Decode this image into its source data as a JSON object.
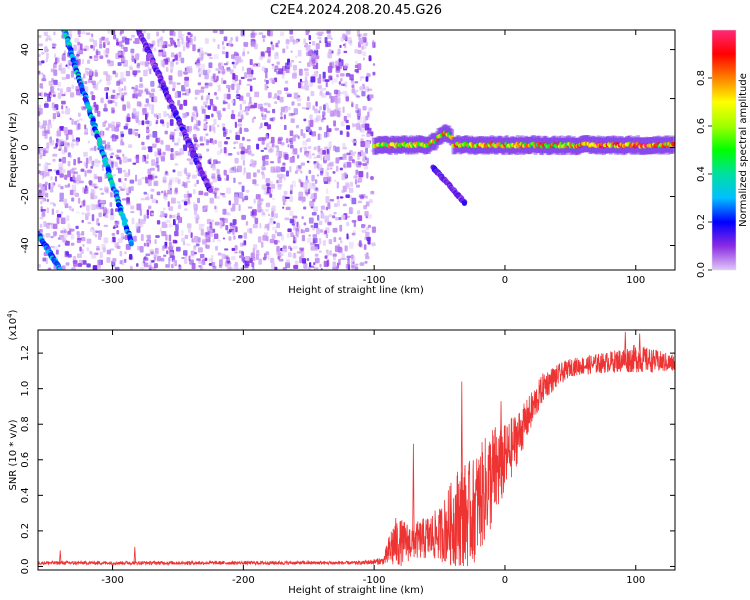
{
  "title": "C2E4.2024.208.20.45.G26",
  "chart_data": [
    {
      "type": "heatmap",
      "title": "C2E4.2024.208.20.45.G26",
      "xlabel": "Height of straight line (km)",
      "ylabel": "Frequency (Hz)",
      "xlim": [
        -357,
        130
      ],
      "ylim": [
        -50,
        48
      ],
      "x_ticks": [
        -300,
        -200,
        -100,
        0,
        100
      ],
      "y_ticks": [
        -40,
        -20,
        0,
        20,
        40
      ],
      "colorbar": {
        "label": "Normalized spectral amplitude",
        "range": [
          0,
          1
        ],
        "ticks": [
          0.0,
          0.2,
          0.4,
          0.6,
          0.8
        ],
        "colormap": [
          "#e0c8f8",
          "#8a2be2",
          "#0000ff",
          "#00bfff",
          "#00e0a0",
          "#00ff00",
          "#a0ff00",
          "#ffff00",
          "#ff8000",
          "#ff0000",
          "#ff2a7a"
        ]
      },
      "noise_region_x": [
        -357,
        -100
      ],
      "features": [
        {
          "name": "diagonal trace A",
          "x": [
            -337,
            -285
          ],
          "y": [
            48,
            -40
          ],
          "level": 0.35
        },
        {
          "name": "diagonal trace B",
          "x": [
            -280,
            -225
          ],
          "y": [
            48,
            -18
          ],
          "level": 0.15
        },
        {
          "name": "short trace C",
          "x": [
            -357,
            -340
          ],
          "y": [
            -35,
            -50
          ],
          "level": 0.3
        },
        {
          "name": "carrier",
          "x": [
            -100,
            130
          ],
          "y_center": 1,
          "level": 0.8
        },
        {
          "name": "branch",
          "x": [
            -55,
            -30
          ],
          "y": [
            -8,
            -23
          ],
          "level": 0.15
        }
      ]
    },
    {
      "type": "line",
      "xlabel": "Height of straight line (km)",
      "ylabel": "SNR (10 * v/v)",
      "yscale_label": "(x10",
      "yscale_exp": "4",
      "yscale_close": ")",
      "xlim": [
        -357,
        130
      ],
      "ylim": [
        -0.02,
        1.33
      ],
      "x_ticks": [
        -300,
        -200,
        -100,
        0,
        100
      ],
      "y_ticks": [
        0.0,
        0.2,
        0.4,
        0.6,
        0.8,
        1.0,
        1.2
      ],
      "line_color": "#ee3333",
      "envelope": [
        {
          "x": -357,
          "mean": 0.02,
          "spread": 0.01
        },
        {
          "x": -110,
          "mean": 0.02,
          "spread": 0.01
        },
        {
          "x": -93,
          "mean": 0.03,
          "spread": 0.02
        },
        {
          "x": -85,
          "mean": 0.13,
          "spread": 0.15
        },
        {
          "x": -70,
          "mean": 0.14,
          "spread": 0.1
        },
        {
          "x": -50,
          "mean": 0.18,
          "spread": 0.15
        },
        {
          "x": -35,
          "mean": 0.28,
          "spread": 0.3
        },
        {
          "x": -25,
          "mean": 0.3,
          "spread": 0.3
        },
        {
          "x": -10,
          "mean": 0.5,
          "spread": 0.3
        },
        {
          "x": 0,
          "mean": 0.6,
          "spread": 0.2
        },
        {
          "x": 15,
          "mean": 0.8,
          "spread": 0.12
        },
        {
          "x": 30,
          "mean": 1.02,
          "spread": 0.08
        },
        {
          "x": 50,
          "mean": 1.12,
          "spread": 0.05
        },
        {
          "x": 80,
          "mean": 1.15,
          "spread": 0.06
        },
        {
          "x": 100,
          "mean": 1.17,
          "spread": 0.08
        },
        {
          "x": 130,
          "mean": 1.14,
          "spread": 0.05
        }
      ],
      "peaks": [
        {
          "x": -340,
          "y": 0.09
        },
        {
          "x": -283,
          "y": 0.11
        },
        {
          "x": -70,
          "y": 0.69
        },
        {
          "x": -33,
          "y": 1.04
        },
        {
          "x": -3,
          "y": 0.93
        },
        {
          "x": 92,
          "y": 1.32
        },
        {
          "x": 103,
          "y": 1.31
        }
      ]
    }
  ]
}
